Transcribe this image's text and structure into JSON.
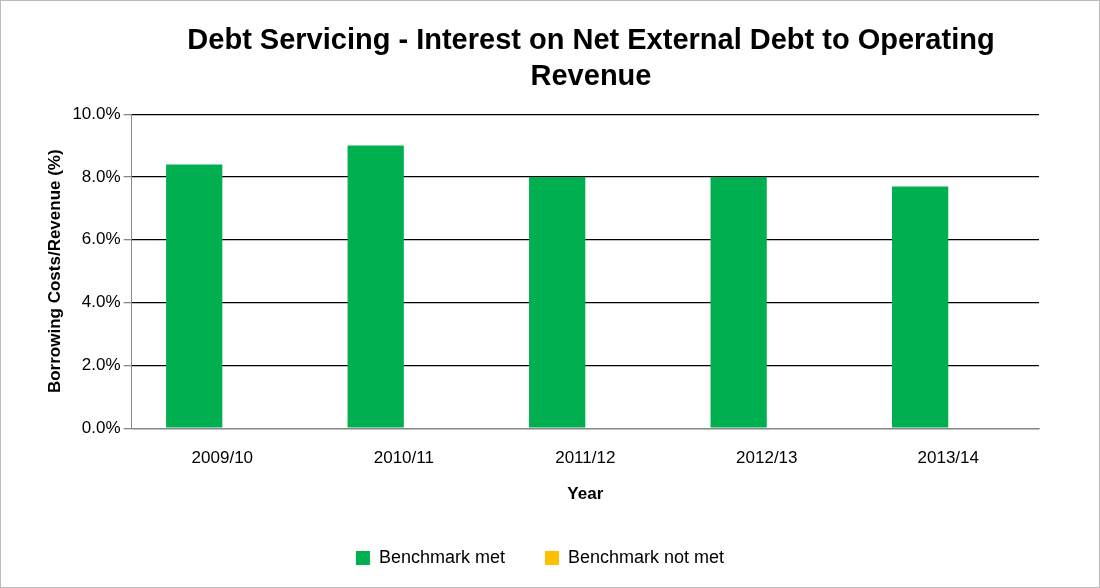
{
  "chart_data": {
    "type": "bar",
    "title": "Debt Servicing - Interest on Net External Debt to Operating Revenue",
    "xlabel": "Year",
    "ylabel": "Borrowing Costs/Revenue (%)",
    "categories": [
      "2009/10",
      "2010/11",
      "2011/12",
      "2012/13",
      "2013/14"
    ],
    "series": [
      {
        "name": "Benchmark met",
        "color": "#00b050",
        "values": [
          8.4,
          9.0,
          8.0,
          8.0,
          7.7
        ]
      },
      {
        "name": "Benchmark not met",
        "color": "#ffc000",
        "values": [
          null,
          null,
          null,
          null,
          null
        ]
      }
    ],
    "ylim": [
      0,
      10
    ],
    "yticks": [
      {
        "value": 0,
        "label": "0.0%"
      },
      {
        "value": 2,
        "label": "2.0%"
      },
      {
        "value": 4,
        "label": "4.0%"
      },
      {
        "value": 6,
        "label": "6.0%"
      },
      {
        "value": 8,
        "label": "8.0%"
      },
      {
        "value": 10,
        "label": "10.0%"
      }
    ],
    "grid": "y",
    "legend": "bottom"
  }
}
